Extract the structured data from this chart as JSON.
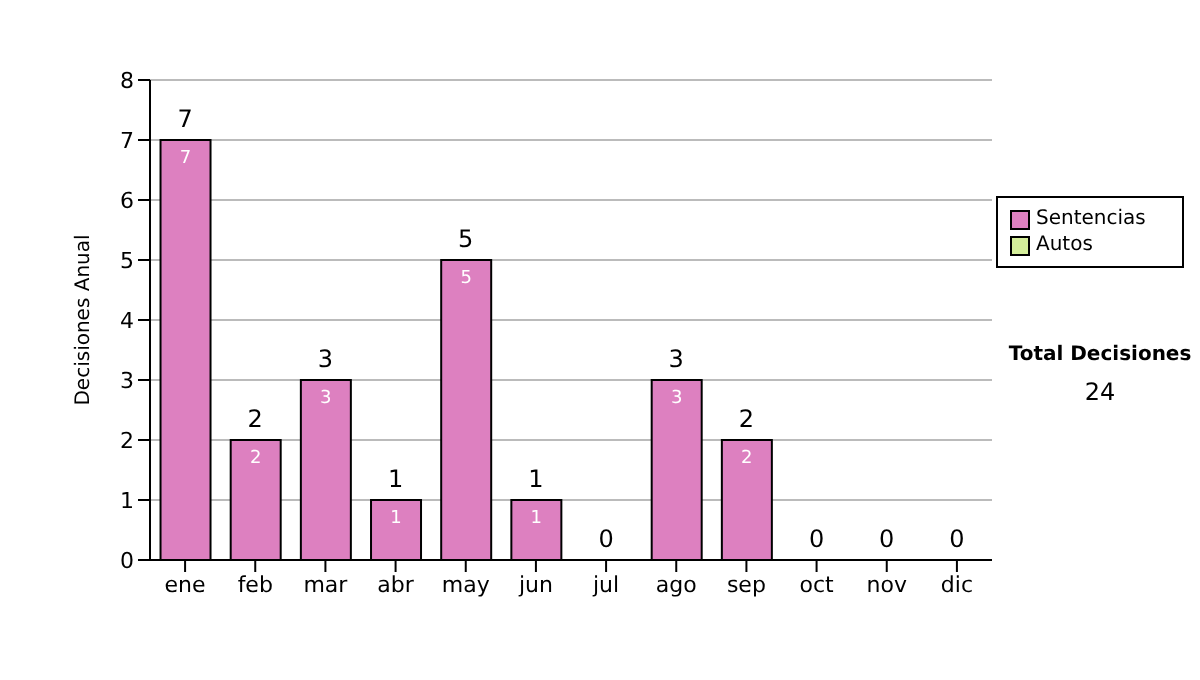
{
  "chart_data": {
    "type": "bar",
    "ylabel": "Decisiones Anual",
    "categories": [
      "ene",
      "feb",
      "mar",
      "abr",
      "may",
      "jun",
      "jul",
      "ago",
      "sep",
      "oct",
      "nov",
      "dic"
    ],
    "series": [
      {
        "name": "Sentencias",
        "color": "#dd80c0",
        "values": [
          7,
          2,
          3,
          1,
          5,
          1,
          0,
          3,
          2,
          0,
          0,
          0
        ],
        "value_labels": [
          "7",
          "2",
          "3",
          "1",
          "5",
          "1",
          null,
          "3",
          "2",
          null,
          null,
          null
        ]
      },
      {
        "name": "Autos",
        "color": "#d4ee9a",
        "values": [
          0,
          0,
          0,
          0,
          0,
          0,
          0,
          0,
          0,
          0,
          0,
          0
        ]
      }
    ],
    "stacked": true,
    "totals": [
      "7",
      "2",
      "3",
      "1",
      "5",
      "1",
      "0",
      "3",
      "2",
      "0",
      "0",
      "0"
    ],
    "ylim": [
      0,
      8
    ],
    "yticks": [
      0,
      1,
      2,
      3,
      4,
      5,
      6,
      7,
      8
    ],
    "grid": "y",
    "legend": "right",
    "annotations": [
      "Total Decisiones",
      "24"
    ]
  }
}
